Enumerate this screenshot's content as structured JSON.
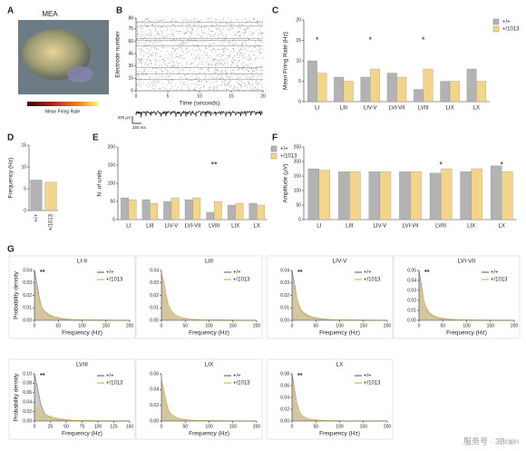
{
  "panel_labels": [
    "A",
    "B",
    "C",
    "D",
    "E",
    "F",
    "G"
  ],
  "mea": {
    "title": "MEA",
    "colorbar_label": "Mean Firing Rate"
  },
  "watermark": "服务号 · 3Brain",
  "chart_data": [
    {
      "type": "raster",
      "ylabel": "Electrode number",
      "xlabel": "Time (seconds)",
      "xlim": [
        0,
        20
      ],
      "xticks": [
        0,
        5,
        10,
        15,
        20
      ],
      "ylim": [
        0,
        88
      ],
      "yticks": [
        0,
        15,
        30,
        45,
        60,
        75,
        88
      ],
      "trace_scale_v": "200 µV",
      "trace_scale_t": "250 ms"
    },
    {
      "type": "bar",
      "ylabel": "Mean Firing Rate (Hz)",
      "categories": [
        "LI",
        "LIII",
        "LIV-V",
        "LVI-VII",
        "LVIII",
        "LIX",
        "LX"
      ],
      "ylim": [
        0,
        20
      ],
      "yticks": [
        0,
        5,
        10,
        15,
        20
      ],
      "legend": "upper-right",
      "series": [
        {
          "name": "+/+",
          "color": "#b3b3b3",
          "values": [
            10,
            6,
            6,
            7,
            3,
            5,
            8
          ]
        },
        {
          "name": "+/1013",
          "color": "#f3d48b",
          "values": [
            7,
            5,
            8,
            6,
            8,
            5,
            5
          ]
        }
      ],
      "significance": [
        "*",
        null,
        "*",
        null,
        "*",
        null,
        null
      ]
    },
    {
      "type": "bar",
      "ylabel": "Frequency (Hz)",
      "categories": [
        "+/+",
        "+/1013"
      ],
      "values": [
        7,
        6.5
      ],
      "colors": [
        "#b3b3b3",
        "#f3d48b"
      ],
      "ylim": [
        0,
        15
      ],
      "yticks": [
        0,
        5,
        10,
        15
      ]
    },
    {
      "type": "bar",
      "ylabel": "N. of units",
      "categories": [
        "LI",
        "LIII",
        "LIV-V",
        "LVI-VII",
        "LVIII",
        "LIX",
        "LX"
      ],
      "ylim": [
        0,
        200
      ],
      "yticks": [
        0,
        50,
        100,
        150,
        200
      ],
      "legend": "upper-right",
      "series": [
        {
          "name": "+/+",
          "color": "#b3b3b3",
          "values": [
            60,
            55,
            50,
            55,
            20,
            40,
            45
          ]
        },
        {
          "name": "+/1013",
          "color": "#f3d48b",
          "values": [
            55,
            45,
            60,
            60,
            50,
            45,
            40
          ]
        }
      ],
      "significance": [
        null,
        null,
        null,
        null,
        "**",
        null,
        null
      ]
    },
    {
      "type": "bar",
      "ylabel": "Amplitude (µV)",
      "categories": [
        "LI",
        "LIII",
        "LIV-V",
        "LVI-VII",
        "LVIII",
        "LIX",
        "LX"
      ],
      "ylim": [
        0,
        250
      ],
      "yticks": [
        0,
        50,
        100,
        150,
        200,
        250
      ],
      "series": [
        {
          "name": "+/+",
          "color": "#b3b3b3",
          "values": [
            175,
            165,
            165,
            165,
            160,
            165,
            185
          ]
        },
        {
          "name": "+/1013",
          "color": "#f3d48b",
          "values": [
            170,
            165,
            165,
            165,
            175,
            175,
            165
          ]
        }
      ],
      "significance": [
        null,
        null,
        null,
        null,
        "*",
        null,
        "*"
      ]
    },
    {
      "type": "density",
      "title": "LI-II",
      "ylabel": "Probability density",
      "xlabel": "Frequency (Hz)",
      "significance": "**",
      "xlim": [
        0,
        200
      ],
      "xticks": [
        0,
        50,
        100,
        150,
        200
      ],
      "ylim": [
        0,
        0.04
      ],
      "yticks": [
        {
          "value": 0,
          "label": "0.00"
        },
        0.01,
        0.02,
        0.03,
        0.04
      ],
      "x": [
        0,
        5,
        10,
        15,
        20,
        30,
        40,
        60,
        80,
        120,
        200
      ],
      "series": [
        {
          "name": "+/+",
          "color": "#8c8c8c",
          "values": [
            0.04,
            0.03,
            0.018,
            0.011,
            0.007,
            0.004,
            0.0025,
            0.001,
            0.0005,
            0.0002,
            0
          ]
        },
        {
          "name": "+/1013",
          "color": "#e3c170",
          "values": [
            0.028,
            0.024,
            0.016,
            0.011,
            0.008,
            0.005,
            0.003,
            0.0015,
            0.0007,
            0.0003,
            0
          ]
        }
      ]
    },
    {
      "type": "density",
      "title": "LIII",
      "xlabel": "Frequency (Hz)",
      "xlim": [
        0,
        200
      ],
      "xticks": [
        0,
        50,
        100,
        150,
        200
      ],
      "ylim": [
        0,
        0.04
      ],
      "yticks": [
        {
          "value": 0,
          "label": "0.00"
        },
        0.01,
        0.02,
        0.03,
        0.04
      ],
      "x": [
        0,
        5,
        10,
        15,
        20,
        30,
        40,
        60,
        80,
        120,
        200
      ],
      "series": [
        {
          "name": "+/+",
          "color": "#8c8c8c",
          "values": [
            0.036,
            0.03,
            0.019,
            0.012,
            0.008,
            0.004,
            0.0025,
            0.001,
            0.0005,
            0.0002,
            0
          ]
        },
        {
          "name": "+/1013",
          "color": "#e3c170",
          "values": [
            0.038,
            0.031,
            0.02,
            0.012,
            0.008,
            0.004,
            0.0025,
            0.001,
            0.0005,
            0.0002,
            0
          ]
        }
      ]
    },
    {
      "type": "density",
      "title": "LIV-V",
      "xlabel": "Frequency (Hz)",
      "significance": "**",
      "xlim": [
        0,
        200
      ],
      "xticks": [
        0,
        50,
        100,
        150,
        200
      ],
      "ylim": [
        0,
        0.04
      ],
      "yticks": [
        {
          "value": 0,
          "label": "0.00"
        },
        0.01,
        0.02,
        0.03,
        0.04
      ],
      "x": [
        0,
        5,
        10,
        15,
        20,
        30,
        40,
        60,
        80,
        120,
        200
      ],
      "series": [
        {
          "name": "+/+",
          "color": "#8c8c8c",
          "values": [
            0.04,
            0.03,
            0.018,
            0.011,
            0.007,
            0.004,
            0.0025,
            0.001,
            0.0005,
            0.0002,
            0
          ]
        },
        {
          "name": "+/1013",
          "color": "#e3c170",
          "values": [
            0.03,
            0.026,
            0.018,
            0.012,
            0.008,
            0.005,
            0.003,
            0.0015,
            0.0007,
            0.0003,
            0
          ]
        }
      ]
    },
    {
      "type": "density",
      "title": "LVI-VII",
      "xlabel": "Frequency (Hz)",
      "significance": "**",
      "xlim": [
        0,
        200
      ],
      "xticks": [
        0,
        50,
        100,
        150,
        200
      ],
      "ylim": [
        0,
        0.05
      ],
      "yticks": [
        {
          "value": 0,
          "label": "0.00"
        },
        0.01,
        0.02,
        0.03,
        0.04,
        0.05
      ],
      "x": [
        0,
        5,
        10,
        15,
        20,
        30,
        40,
        60,
        80,
        120,
        200
      ],
      "series": [
        {
          "name": "+/+",
          "color": "#8c8c8c",
          "values": [
            0.05,
            0.035,
            0.02,
            0.012,
            0.007,
            0.004,
            0.002,
            0.001,
            0.0005,
            0.0002,
            0
          ]
        },
        {
          "name": "+/1013",
          "color": "#e3c170",
          "values": [
            0.035,
            0.03,
            0.02,
            0.013,
            0.009,
            0.005,
            0.003,
            0.0015,
            0.0007,
            0.0003,
            0
          ]
        }
      ]
    },
    {
      "type": "density",
      "title": "LVIII",
      "ylabel": "Probability density",
      "xlabel": "Frequency (Hz)",
      "significance": "**",
      "xlim": [
        0,
        150
      ],
      "xticks": [
        0,
        25,
        50,
        75,
        100,
        125,
        150
      ],
      "ylim": [
        0,
        0.1
      ],
      "yticks": [
        {
          "value": 0,
          "label": "0.00"
        },
        0.02,
        0.04,
        0.06,
        0.08,
        {
          "value": 0.1,
          "label": "0.10"
        }
      ],
      "x": [
        0,
        5,
        10,
        15,
        20,
        30,
        40,
        60,
        80,
        100,
        150
      ],
      "series": [
        {
          "name": "+/+",
          "color": "#8c8c8c",
          "values": [
            0.1,
            0.07,
            0.035,
            0.018,
            0.01,
            0.005,
            0.003,
            0.001,
            0.0005,
            0.0002,
            0
          ]
        },
        {
          "name": "+/1013",
          "color": "#e3c170",
          "values": [
            0.03,
            0.028,
            0.022,
            0.016,
            0.012,
            0.008,
            0.005,
            0.002,
            0.001,
            0.0005,
            0
          ]
        }
      ]
    },
    {
      "type": "density",
      "title": "LIX",
      "xlabel": "Frequency (Hz)",
      "xlim": [
        0,
        200
      ],
      "xticks": [
        0,
        50,
        100,
        150,
        200
      ],
      "ylim": [
        0,
        0.06
      ],
      "yticks": [
        {
          "value": 0,
          "label": "0.00"
        },
        0.02,
        0.04,
        0.06
      ],
      "x": [
        0,
        5,
        10,
        15,
        20,
        30,
        40,
        60,
        80,
        120,
        200
      ],
      "series": [
        {
          "name": "+/+",
          "color": "#8c8c8c",
          "values": [
            0.05,
            0.04,
            0.024,
            0.014,
            0.009,
            0.005,
            0.003,
            0.0012,
            0.0006,
            0.0002,
            0
          ]
        },
        {
          "name": "+/1013",
          "color": "#e3c170",
          "values": [
            0.052,
            0.041,
            0.025,
            0.014,
            0.009,
            0.005,
            0.003,
            0.0012,
            0.0006,
            0.0002,
            0
          ]
        }
      ]
    },
    {
      "type": "density",
      "title": "LX",
      "xlabel": "Frequency (Hz)",
      "significance": "**",
      "xlim": [
        0,
        200
      ],
      "xticks": [
        0,
        50,
        100,
        150,
        200
      ],
      "ylim": [
        0,
        0.08
      ],
      "yticks": [
        {
          "value": 0,
          "label": "0.00"
        },
        0.02,
        0.04,
        0.06,
        0.08
      ],
      "x": [
        0,
        5,
        10,
        15,
        20,
        30,
        40,
        60,
        80,
        120,
        200
      ],
      "series": [
        {
          "name": "+/+",
          "color": "#8c8c8c",
          "values": [
            0.08,
            0.055,
            0.03,
            0.017,
            0.01,
            0.005,
            0.003,
            0.0012,
            0.0006,
            0.0002,
            0
          ]
        },
        {
          "name": "+/1013",
          "color": "#e3c170",
          "values": [
            0.07,
            0.05,
            0.028,
            0.016,
            0.01,
            0.005,
            0.003,
            0.0012,
            0.0006,
            0.0002,
            0
          ]
        }
      ]
    }
  ]
}
